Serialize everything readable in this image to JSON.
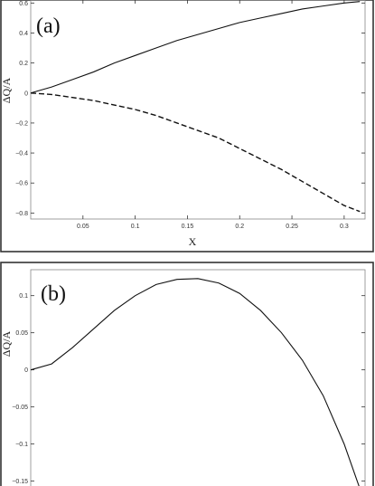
{
  "chart_data": [
    {
      "type": "line",
      "panel_label": "(a)",
      "xlabel": "X",
      "ylabel": "ΔQ/A",
      "xlim": [
        0,
        0.32
      ],
      "ylim": [
        -0.84,
        0.62
      ],
      "xticks": [
        0.05,
        0.1,
        0.15,
        0.2,
        0.25,
        0.3
      ],
      "xtick_labels": [
        "0.05",
        "0.1",
        "0.15",
        "0.2",
        "0.25",
        "0.3"
      ],
      "yticks": [
        0.6,
        0.4,
        0.2,
        0,
        -0.2,
        -0.4,
        -0.6,
        -0.8
      ],
      "ytick_labels": [
        "0.6",
        "0.4",
        "0.2",
        "0",
        "−0.2",
        "−0.4",
        "−0.6",
        "−0.8"
      ],
      "series": [
        {
          "style": "solid",
          "x": [
            0,
            0.02,
            0.04,
            0.06,
            0.08,
            0.1,
            0.12,
            0.14,
            0.16,
            0.18,
            0.2,
            0.22,
            0.24,
            0.26,
            0.28,
            0.3,
            0.315
          ],
          "y": [
            0,
            0.04,
            0.09,
            0.14,
            0.2,
            0.25,
            0.3,
            0.35,
            0.39,
            0.43,
            0.47,
            0.5,
            0.53,
            0.56,
            0.58,
            0.6,
            0.61
          ]
        },
        {
          "style": "dashed",
          "x": [
            0,
            0.02,
            0.04,
            0.06,
            0.08,
            0.1,
            0.12,
            0.14,
            0.16,
            0.18,
            0.2,
            0.22,
            0.24,
            0.26,
            0.28,
            0.3,
            0.315
          ],
          "y": [
            0,
            -0.01,
            -0.03,
            -0.05,
            -0.08,
            -0.11,
            -0.15,
            -0.2,
            -0.25,
            -0.3,
            -0.37,
            -0.44,
            -0.51,
            -0.59,
            -0.67,
            -0.75,
            -0.79
          ]
        }
      ]
    },
    {
      "type": "line",
      "panel_label": "(b)",
      "xlabel": "",
      "ylabel": "ΔQ/A",
      "xlim": [
        0,
        0.32
      ],
      "ylim": [
        -0.17,
        0.135
      ],
      "xticks": [],
      "xtick_labels": [],
      "yticks": [
        0.1,
        0.05,
        0,
        -0.05,
        -0.1,
        -0.15
      ],
      "ytick_labels": [
        "0.1",
        "0.05",
        "0",
        "−0.05",
        "−0.1",
        "−0.15"
      ],
      "series": [
        {
          "style": "solid",
          "x": [
            0,
            0.02,
            0.04,
            0.06,
            0.08,
            0.1,
            0.12,
            0.14,
            0.16,
            0.18,
            0.2,
            0.22,
            0.24,
            0.26,
            0.28,
            0.3,
            0.315
          ],
          "y": [
            0,
            0.008,
            0.03,
            0.055,
            0.08,
            0.1,
            0.115,
            0.122,
            0.123,
            0.117,
            0.103,
            0.08,
            0.05,
            0.013,
            -0.035,
            -0.1,
            -0.16
          ]
        }
      ]
    }
  ]
}
